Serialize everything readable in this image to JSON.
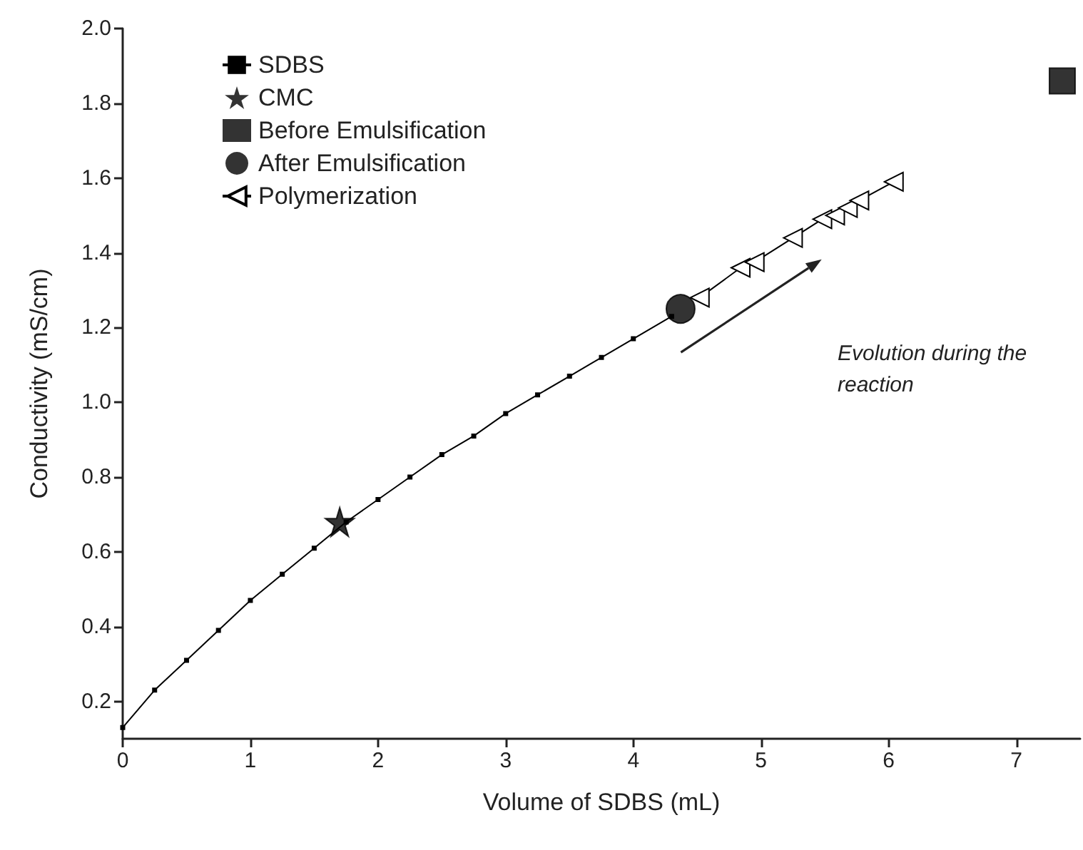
{
  "chart_data": {
    "type": "line",
    "xlabel": "Volume of SDBS (mL)",
    "ylabel": "Conductivity (mS/cm)",
    "xlim": [
      0,
      7.5
    ],
    "xticks": [
      0,
      1,
      2,
      3,
      4,
      5,
      6,
      7
    ],
    "ylim": [
      0.1,
      2.0
    ],
    "yticks": [
      {
        "value": 0.2,
        "label": "0.2"
      },
      {
        "value": 0.4,
        "label": "0.4"
      },
      {
        "value": 0.6,
        "label": "0.6"
      },
      {
        "value": 0.8,
        "label": "0.8"
      },
      {
        "value": 1.0,
        "label": "1.0"
      },
      {
        "value": 1.2,
        "label": "1.2"
      },
      {
        "value": 1.4,
        "label": "1.4"
      },
      {
        "value": 1.6,
        "label": "1.6"
      },
      {
        "value": 1.8,
        "label": "1.8"
      },
      {
        "value": 2.0,
        "label": "2.0"
      }
    ],
    "grid": false,
    "legend": "top left",
    "annotations": [
      "Evolution during the\nreaction"
    ],
    "series": [
      {
        "name": "SDBS",
        "marker": "square",
        "color": "#000000",
        "x": [
          0,
          0.25,
          0.5,
          0.75,
          1,
          1.25,
          1.5,
          1.75,
          2,
          2.25,
          2.5,
          2.75,
          3,
          3.25,
          3.5,
          3.75,
          4,
          4.3
        ],
        "values": [
          0.13,
          0.23,
          0.31,
          0.39,
          0.47,
          0.54,
          0.61,
          0.68,
          0.74,
          0.8,
          0.86,
          0.91,
          0.97,
          1.02,
          1.07,
          1.12,
          1.17,
          1.23
        ]
      },
      {
        "name": "CMC",
        "type": "scatter",
        "marker": "star",
        "color": "#000000",
        "x": [
          1.7
        ],
        "values": [
          0.68
        ]
      },
      {
        "name": "Before Emulsification",
        "type": "scatter",
        "marker": "square",
        "color": "#000000",
        "x": [
          7.36
        ],
        "values": [
          1.86
        ]
      },
      {
        "name": "After Emulsification",
        "type": "scatter",
        "marker": "circle",
        "color": "#000000",
        "x": [
          4.37
        ],
        "values": [
          1.25
        ]
      },
      {
        "name": "Polymerization",
        "marker": "triangle",
        "color": "#000000",
        "x": [
          4.52,
          4.84,
          4.95,
          5.25,
          5.48,
          5.58,
          5.68,
          5.77,
          6.04
        ],
        "values": [
          1.28,
          1.36,
          1.375,
          1.44,
          1.49,
          1.5,
          1.52,
          1.54,
          1.59
        ]
      }
    ]
  }
}
